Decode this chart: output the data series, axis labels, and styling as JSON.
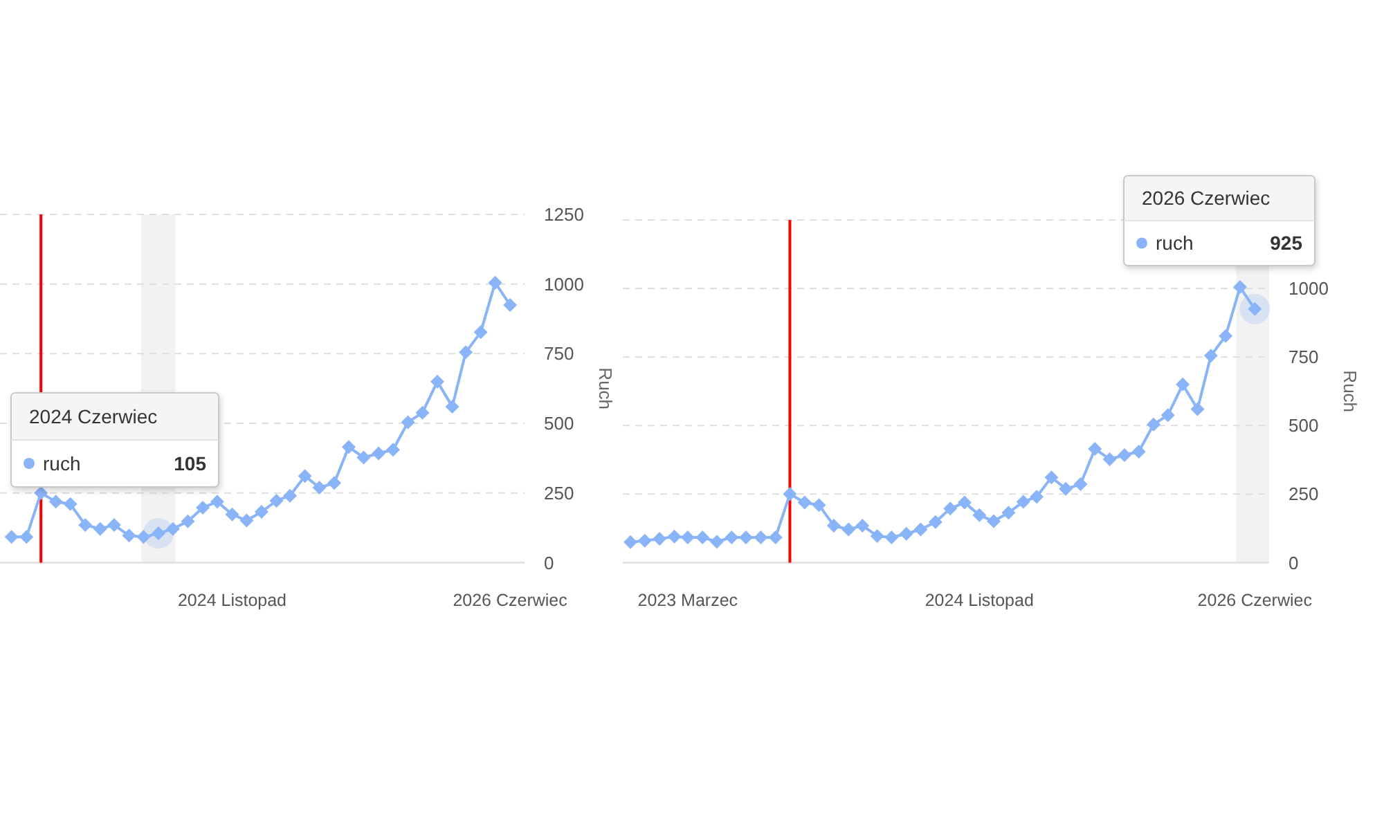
{
  "chart_data": [
    {
      "type": "line",
      "x": [
        "2023-08",
        "2023-09",
        "2023-10",
        "2023-11",
        "2023-12",
        "2024-01",
        "2024-02",
        "2024-03",
        "2024-04",
        "2024-05",
        "2024-06",
        "2024-07",
        "2024-08",
        "2024-09",
        "2024-10",
        "2024-11",
        "2024-12",
        "2025-01",
        "2025-02",
        "2025-03",
        "2025-04",
        "2025-05",
        "2025-06",
        "2025-07",
        "2025-08",
        "2025-09",
        "2025-10",
        "2025-11",
        "2025-12",
        "2026-01",
        "2026-02",
        "2026-03",
        "2026-04",
        "2026-05",
        "2026-06"
      ],
      "series": [
        {
          "name": "ruch",
          "color": "#8ab4f8",
          "values": [
            92,
            92,
            250,
            219,
            210,
            135,
            121,
            135,
            97,
            92,
            105,
            121,
            148,
            197,
            219,
            173,
            151,
            182,
            222,
            240,
            311,
            269,
            286,
            415,
            377,
            392,
            405,
            504,
            538,
            650,
            560,
            755,
            827,
            1005,
            925
          ],
          "value_labels": [
            null,
            null,
            null,
            null,
            null,
            null,
            null,
            null,
            null,
            null,
            "105",
            null,
            null,
            null,
            null,
            null,
            null,
            null,
            null,
            null,
            null,
            null,
            null,
            null,
            null,
            null,
            null,
            null,
            null,
            null,
            null,
            null,
            null,
            null,
            null
          ]
        }
      ],
      "xlim": [
        "2023-07-08",
        "2026-07-01"
      ],
      "xticks": [
        {
          "value": "2024-11",
          "label": "2024 Listopad"
        },
        {
          "value": "2026-06",
          "label": "2026 Czerwiec"
        }
      ],
      "ylim": [
        0,
        1250
      ],
      "yticks": [
        0,
        250,
        500,
        750,
        1000,
        1250
      ],
      "ylabel": "Ruch",
      "grid": "y",
      "marker": "diamond",
      "line_style": "solid",
      "ref_lines": [
        {
          "axis": "x",
          "value": "2023-10",
          "color": "#ff0000"
        }
      ],
      "bands": [
        {
          "axis": "x",
          "from": "2024-04-26",
          "to": "2024-07-06",
          "color": "#f2f2f2"
        }
      ],
      "annotations": [
        "2024 Czerwiec"
      ]
    },
    {
      "type": "line",
      "x": [
        "2022-11",
        "2022-12",
        "2023-01",
        "2023-02",
        "2023-03",
        "2023-04",
        "2023-05",
        "2023-06",
        "2023-07",
        "2023-08",
        "2023-09",
        "2023-10",
        "2023-11",
        "2023-12",
        "2024-01",
        "2024-02",
        "2024-03",
        "2024-04",
        "2024-05",
        "2024-06",
        "2024-07",
        "2024-08",
        "2024-09",
        "2024-10",
        "2024-11",
        "2024-12",
        "2025-01",
        "2025-02",
        "2025-03",
        "2025-04",
        "2025-05",
        "2025-06",
        "2025-07",
        "2025-08",
        "2025-09",
        "2025-10",
        "2025-11",
        "2025-12",
        "2026-01",
        "2026-02",
        "2026-03",
        "2026-04",
        "2026-05",
        "2026-06"
      ],
      "series": [
        {
          "name": "ruch",
          "color": "#8ab4f8",
          "values": [
            75,
            80,
            87,
            95,
            92,
            92,
            76,
            92,
            92,
            92,
            92,
            250,
            219,
            210,
            135,
            121,
            135,
            97,
            92,
            105,
            121,
            148,
            197,
            219,
            173,
            151,
            182,
            222,
            240,
            311,
            269,
            286,
            415,
            377,
            392,
            405,
            504,
            538,
            650,
            560,
            755,
            827,
            1005,
            925
          ],
          "value_labels": [
            null,
            null,
            null,
            null,
            null,
            null,
            null,
            null,
            null,
            null,
            null,
            null,
            null,
            null,
            null,
            null,
            null,
            null,
            null,
            null,
            null,
            null,
            null,
            null,
            null,
            null,
            null,
            null,
            null,
            null,
            null,
            null,
            null,
            null,
            null,
            null,
            null,
            null,
            null,
            null,
            null,
            null,
            null,
            "925"
          ]
        }
      ],
      "xlim": [
        "2022-10-16",
        "2026-07-01"
      ],
      "xticks": [
        {
          "value": "2023-03",
          "label": "2023 Marzec"
        },
        {
          "value": "2024-11",
          "label": "2024 Listopad"
        },
        {
          "value": "2026-06",
          "label": "2026 Czerwiec"
        }
      ],
      "ylim": [
        0,
        1250
      ],
      "yticks": [
        0,
        250,
        500,
        750,
        1000,
        {
          "value": 1250,
          "label": null
        }
      ],
      "ylabel": "Ruch",
      "grid": "y",
      "marker": "diamond",
      "line_style": "solid",
      "ref_lines": [
        {
          "axis": "x",
          "value": "2023-10",
          "color": "#ff0000"
        }
      ],
      "bands": [
        {
          "axis": "x",
          "from": "2026-04-23",
          "to": "2026-07-01",
          "color": "#f2f2f2"
        }
      ],
      "annotations": [
        "2026 Czerwiec"
      ]
    }
  ]
}
